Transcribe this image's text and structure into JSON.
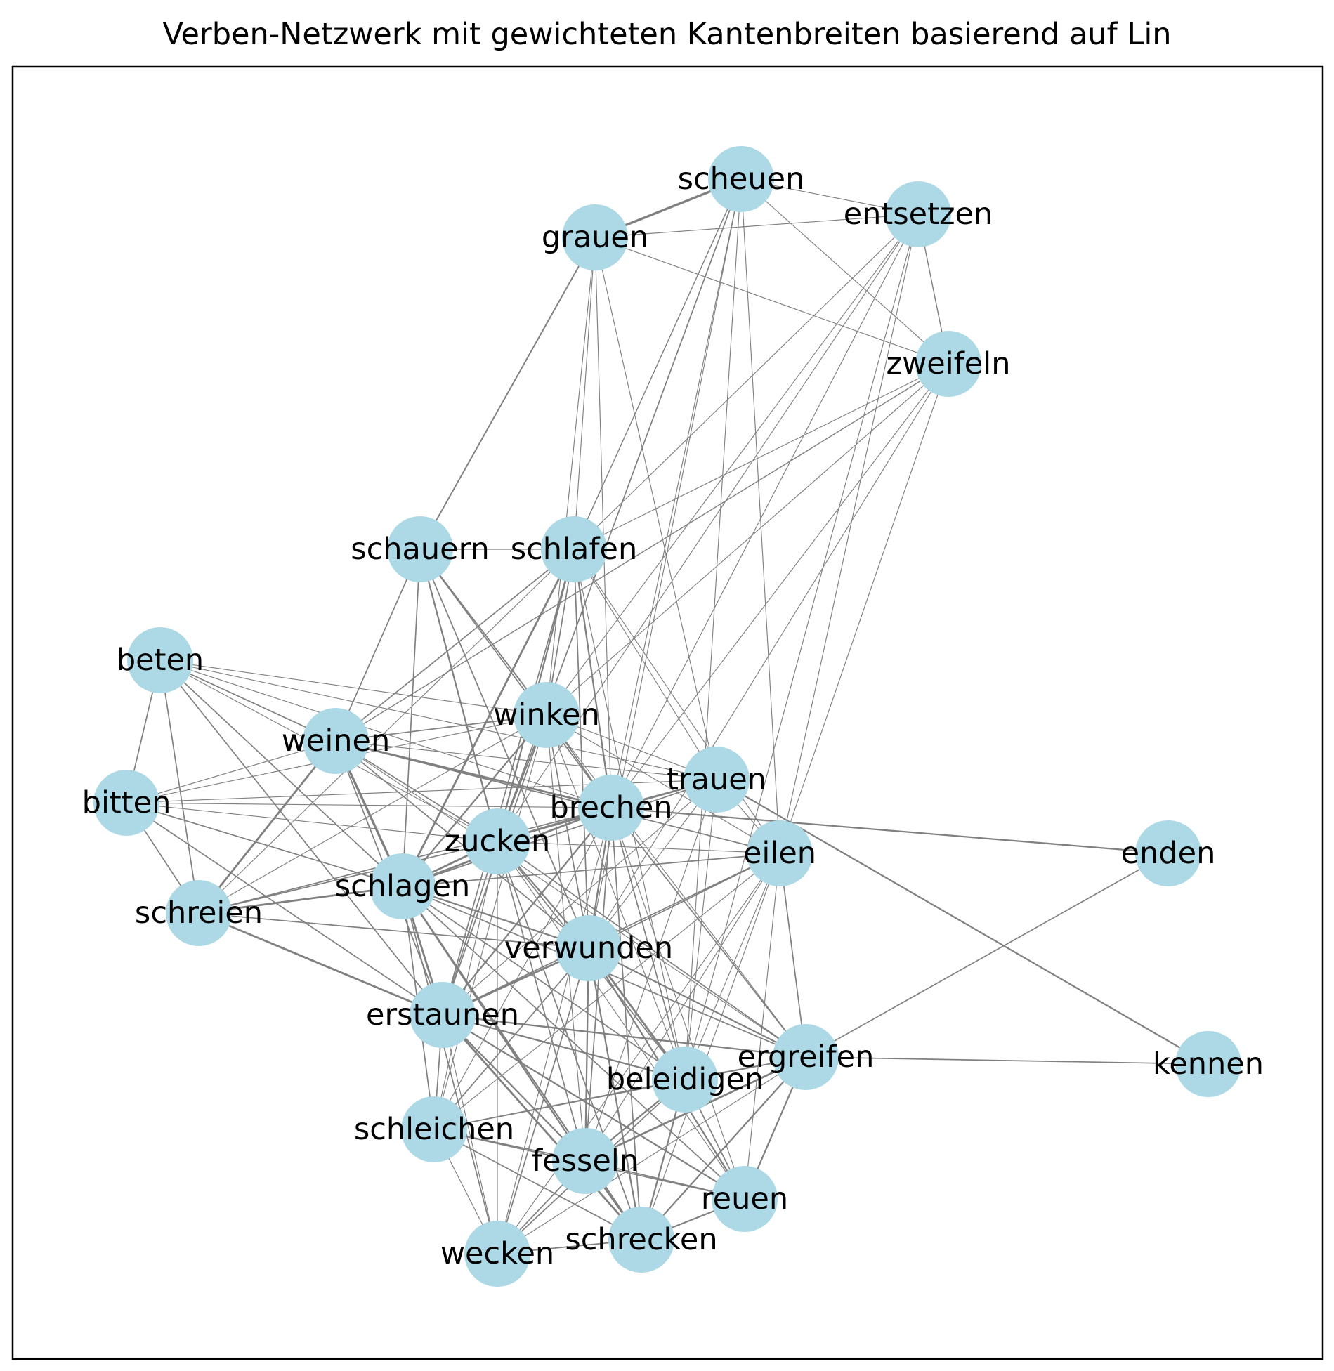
{
  "title": "Verben-Netzwerk mit gewichteten Kantenbreiten basierend auf Lin",
  "style": {
    "node_color": "#add8e6",
    "edge_color": "#808080",
    "frame_color": "#000000",
    "label_color": "#000000"
  },
  "graph": {
    "nodes": [
      {
        "id": "scheuen",
        "label": "scheuen"
      },
      {
        "id": "entsetzen",
        "label": "entsetzen"
      },
      {
        "id": "grauen",
        "label": "grauen"
      },
      {
        "id": "zweifeln",
        "label": "zweifeln"
      },
      {
        "id": "schauern",
        "label": "schauern"
      },
      {
        "id": "schlafen",
        "label": "schlafen"
      },
      {
        "id": "beten",
        "label": "beten"
      },
      {
        "id": "winken",
        "label": "winken"
      },
      {
        "id": "weinen",
        "label": "weinen"
      },
      {
        "id": "trauen",
        "label": "trauen"
      },
      {
        "id": "bitten",
        "label": "bitten"
      },
      {
        "id": "brechen",
        "label": "brechen"
      },
      {
        "id": "zucken",
        "label": "zucken"
      },
      {
        "id": "eilen",
        "label": "eilen"
      },
      {
        "id": "enden",
        "label": "enden"
      },
      {
        "id": "schlagen",
        "label": "schlagen"
      },
      {
        "id": "schreien",
        "label": "schreien"
      },
      {
        "id": "verwunden",
        "label": "verwunden"
      },
      {
        "id": "erstaunen",
        "label": "erstaunen"
      },
      {
        "id": "ergreifen",
        "label": "ergreifen"
      },
      {
        "id": "kennen",
        "label": "kennen"
      },
      {
        "id": "beleidigen",
        "label": "beleidigen"
      },
      {
        "id": "schleichen",
        "label": "schleichen"
      },
      {
        "id": "fesseln",
        "label": "fesseln"
      },
      {
        "id": "reuen",
        "label": "reuen"
      },
      {
        "id": "schrecken",
        "label": "schrecken"
      },
      {
        "id": "wecken",
        "label": "wecken"
      }
    ],
    "edges": [
      [
        "grauen",
        "scheuen",
        5
      ],
      [
        "scheuen",
        "entsetzen",
        1
      ],
      [
        "grauen",
        "entsetzen",
        1
      ],
      [
        "entsetzen",
        "zweifeln",
        1.5
      ],
      [
        "scheuen",
        "zweifeln",
        1
      ],
      [
        "grauen",
        "zweifeln",
        1
      ],
      [
        "grauen",
        "schauern",
        2.5
      ],
      [
        "grauen",
        "schlafen",
        1
      ],
      [
        "grauen",
        "winken",
        1
      ],
      [
        "grauen",
        "brechen",
        1
      ],
      [
        "grauen",
        "trauen",
        1
      ],
      [
        "scheuen",
        "schlafen",
        1.5
      ],
      [
        "scheuen",
        "zucken",
        2
      ],
      [
        "scheuen",
        "brechen",
        1
      ],
      [
        "scheuen",
        "verwunden",
        1
      ],
      [
        "scheuen",
        "eilen",
        1
      ],
      [
        "scheuen",
        "beleidigen",
        1
      ],
      [
        "entsetzen",
        "schlafen",
        1
      ],
      [
        "entsetzen",
        "winken",
        1
      ],
      [
        "entsetzen",
        "brechen",
        1
      ],
      [
        "entsetzen",
        "zucken",
        1
      ],
      [
        "entsetzen",
        "beleidigen",
        1
      ],
      [
        "entsetzen",
        "eilen",
        1
      ],
      [
        "zweifeln",
        "weinen",
        1.5
      ],
      [
        "zweifeln",
        "winken",
        1
      ],
      [
        "zweifeln",
        "brechen",
        1
      ],
      [
        "zweifeln",
        "schlafen",
        1
      ],
      [
        "zweifeln",
        "eilen",
        1
      ],
      [
        "zweifeln",
        "verwunden",
        1
      ],
      [
        "schauern",
        "schlafen",
        1
      ],
      [
        "schauern",
        "weinen",
        2
      ],
      [
        "schauern",
        "schlagen",
        2
      ],
      [
        "schauern",
        "zucken",
        3
      ],
      [
        "schauern",
        "winken",
        2
      ],
      [
        "schauern",
        "brechen",
        2
      ],
      [
        "schauern",
        "verwunden",
        2
      ],
      [
        "schauern",
        "ergreifen",
        1
      ],
      [
        "schlafen",
        "weinen",
        2
      ],
      [
        "schlafen",
        "schreien",
        1
      ],
      [
        "schlafen",
        "schlagen",
        4
      ],
      [
        "schlafen",
        "zucken",
        3
      ],
      [
        "schlafen",
        "brechen",
        3
      ],
      [
        "schlafen",
        "winken",
        2
      ],
      [
        "schlafen",
        "verwunden",
        2
      ],
      [
        "schlafen",
        "eilen",
        1
      ],
      [
        "schlafen",
        "beleidigen",
        1
      ],
      [
        "schlafen",
        "trauen",
        1
      ],
      [
        "schlafen",
        "erstaunen",
        2
      ],
      [
        "beten",
        "bitten",
        2
      ],
      [
        "beten",
        "schreien",
        2
      ],
      [
        "beten",
        "weinen",
        2
      ],
      [
        "beten",
        "winken",
        1
      ],
      [
        "beten",
        "brechen",
        1
      ],
      [
        "beten",
        "trauen",
        1
      ],
      [
        "beten",
        "schlagen",
        2
      ],
      [
        "beten",
        "erstaunen",
        2
      ],
      [
        "beten",
        "zucken",
        1
      ],
      [
        "bitten",
        "weinen",
        1
      ],
      [
        "bitten",
        "schreien",
        2
      ],
      [
        "bitten",
        "winken",
        1
      ],
      [
        "bitten",
        "trauen",
        1
      ],
      [
        "bitten",
        "brechen",
        1
      ],
      [
        "bitten",
        "schlagen",
        2
      ],
      [
        "bitten",
        "zucken",
        1
      ],
      [
        "bitten",
        "erstaunen",
        2
      ],
      [
        "weinen",
        "winken",
        2
      ],
      [
        "weinen",
        "trauen",
        1
      ],
      [
        "weinen",
        "brechen",
        4
      ],
      [
        "weinen",
        "schreien",
        4
      ],
      [
        "weinen",
        "schlagen",
        5
      ],
      [
        "weinen",
        "zucken",
        2
      ],
      [
        "weinen",
        "erstaunen",
        2
      ],
      [
        "weinen",
        "eilen",
        2
      ],
      [
        "weinen",
        "verwunden",
        2
      ],
      [
        "weinen",
        "ergreifen",
        1
      ],
      [
        "winken",
        "brechen",
        2
      ],
      [
        "winken",
        "zucken",
        3
      ],
      [
        "winken",
        "schlagen",
        3
      ],
      [
        "winken",
        "trauen",
        1
      ],
      [
        "winken",
        "verwunden",
        2
      ],
      [
        "winken",
        "erstaunen",
        2
      ],
      [
        "winken",
        "eilen",
        1
      ],
      [
        "winken",
        "beleidigen",
        1
      ],
      [
        "winken",
        "schreien",
        1
      ],
      [
        "winken",
        "fesseln",
        1
      ],
      [
        "winken",
        "schleichen",
        1
      ],
      [
        "trauen",
        "brechen",
        2
      ],
      [
        "trauen",
        "zucken",
        2
      ],
      [
        "trauen",
        "schlagen",
        2
      ],
      [
        "trauen",
        "kennen",
        3
      ],
      [
        "trauen",
        "eilen",
        1
      ],
      [
        "trauen",
        "verwunden",
        1
      ],
      [
        "trauen",
        "erstaunen",
        1
      ],
      [
        "trauen",
        "beleidigen",
        1
      ],
      [
        "trauen",
        "fesseln",
        1
      ],
      [
        "brechen",
        "zucken",
        4
      ],
      [
        "brechen",
        "schlagen",
        4
      ],
      [
        "brechen",
        "enden",
        3
      ],
      [
        "brechen",
        "verwunden",
        3
      ],
      [
        "brechen",
        "erstaunen",
        3
      ],
      [
        "brechen",
        "ergreifen",
        2
      ],
      [
        "brechen",
        "beleidigen",
        2
      ],
      [
        "brechen",
        "schreien",
        2
      ],
      [
        "brechen",
        "fesseln",
        2
      ],
      [
        "brechen",
        "schrecken",
        2
      ],
      [
        "brechen",
        "schleichen",
        1
      ],
      [
        "brechen",
        "wecken",
        1
      ],
      [
        "brechen",
        "reuen",
        1
      ],
      [
        "zucken",
        "schlagen",
        4
      ],
      [
        "zucken",
        "verwunden",
        3
      ],
      [
        "zucken",
        "erstaunen",
        2
      ],
      [
        "zucken",
        "schreien",
        2
      ],
      [
        "zucken",
        "eilen",
        1
      ],
      [
        "zucken",
        "ergreifen",
        2
      ],
      [
        "zucken",
        "beleidigen",
        2
      ],
      [
        "zucken",
        "fesseln",
        2
      ],
      [
        "zucken",
        "schrecken",
        2
      ],
      [
        "zucken",
        "schleichen",
        1
      ],
      [
        "zucken",
        "wecken",
        1
      ],
      [
        "zucken",
        "reuen",
        1
      ],
      [
        "eilen",
        "schlagen",
        2
      ],
      [
        "eilen",
        "verwunden",
        2
      ],
      [
        "eilen",
        "erstaunen",
        2
      ],
      [
        "eilen",
        "ergreifen",
        2
      ],
      [
        "eilen",
        "beleidigen",
        1
      ],
      [
        "eilen",
        "fesseln",
        1
      ],
      [
        "eilen",
        "schrecken",
        1
      ],
      [
        "eilen",
        "schleichen",
        1
      ],
      [
        "eilen",
        "wecken",
        1
      ],
      [
        "eilen",
        "reuen",
        1
      ],
      [
        "enden",
        "ergreifen",
        2
      ],
      [
        "ergreifen",
        "kennen",
        2
      ],
      [
        "schlagen",
        "schreien",
        4
      ],
      [
        "schlagen",
        "verwunden",
        3
      ],
      [
        "schlagen",
        "erstaunen",
        4
      ],
      [
        "schlagen",
        "ergreifen",
        2
      ],
      [
        "schlagen",
        "beleidigen",
        2
      ],
      [
        "schlagen",
        "fesseln",
        3
      ],
      [
        "schlagen",
        "schrecken",
        3
      ],
      [
        "schlagen",
        "schleichen",
        2
      ],
      [
        "schlagen",
        "wecken",
        2
      ],
      [
        "schlagen",
        "reuen",
        2
      ],
      [
        "schreien",
        "erstaunen",
        4
      ],
      [
        "schreien",
        "verwunden",
        2
      ],
      [
        "verwunden",
        "erstaunen",
        4
      ],
      [
        "verwunden",
        "ergreifen",
        3
      ],
      [
        "verwunden",
        "beleidigen",
        4
      ],
      [
        "verwunden",
        "fesseln",
        3
      ],
      [
        "verwunden",
        "schrecken",
        3
      ],
      [
        "verwunden",
        "schleichen",
        2
      ],
      [
        "verwunden",
        "wecken",
        2
      ],
      [
        "verwunden",
        "reuen",
        3
      ],
      [
        "erstaunen",
        "ergreifen",
        3
      ],
      [
        "erstaunen",
        "beleidigen",
        3
      ],
      [
        "erstaunen",
        "fesseln",
        3
      ],
      [
        "erstaunen",
        "schrecken",
        4
      ],
      [
        "erstaunen",
        "schleichen",
        2
      ],
      [
        "erstaunen",
        "wecken",
        1
      ],
      [
        "erstaunen",
        "reuen",
        3
      ],
      [
        "ergreifen",
        "beleidigen",
        2
      ],
      [
        "ergreifen",
        "fesseln",
        4
      ],
      [
        "ergreifen",
        "schrecken",
        3
      ],
      [
        "ergreifen",
        "reuen",
        3
      ],
      [
        "ergreifen",
        "schleichen",
        1
      ],
      [
        "ergreifen",
        "wecken",
        1
      ],
      [
        "beleidigen",
        "fesseln",
        3
      ],
      [
        "beleidigen",
        "schrecken",
        3
      ],
      [
        "beleidigen",
        "reuen",
        2
      ],
      [
        "beleidigen",
        "schleichen",
        2
      ],
      [
        "beleidigen",
        "wecken",
        2
      ],
      [
        "schleichen",
        "fesseln",
        2
      ],
      [
        "schleichen",
        "schrecken",
        2
      ],
      [
        "schleichen",
        "reuen",
        2
      ],
      [
        "schleichen",
        "wecken",
        1
      ],
      [
        "fesseln",
        "schrecken",
        3
      ],
      [
        "fesseln",
        "reuen",
        2
      ],
      [
        "fesseln",
        "wecken",
        2
      ],
      [
        "reuen",
        "schrecken",
        3
      ],
      [
        "schrecken",
        "wecken",
        2
      ]
    ]
  }
}
